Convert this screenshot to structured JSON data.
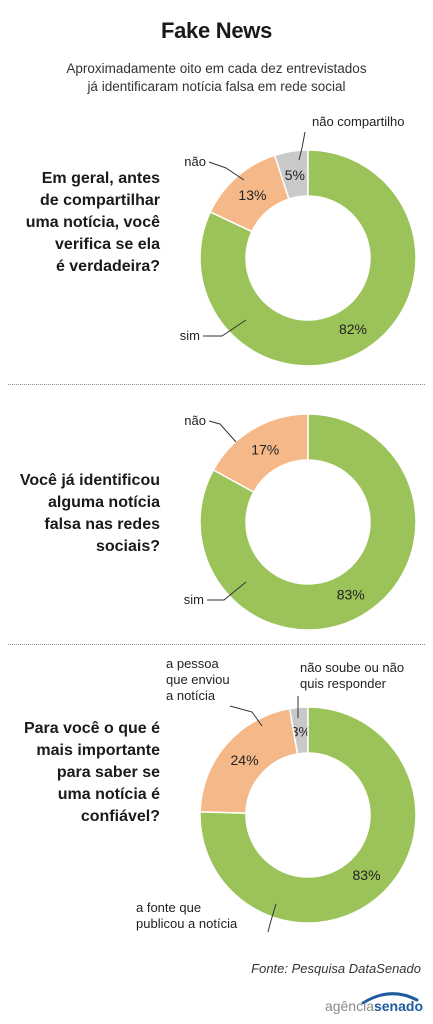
{
  "header": {
    "title": "Fake News",
    "subtitle": "Aproximadamente oito em cada dez entrevistados\njá identificaram notícia falsa em rede social"
  },
  "colors": {
    "sim": "#9bc35a",
    "nao": "#f5b889",
    "other": "#c9c9c9",
    "stroke": "#ffffff",
    "leader": "#333333"
  },
  "chart_data": [
    {
      "type": "pie",
      "question": "Em geral, antes\nde compartilhar\numa notícia, você\nverifica se ela\né verdadeira?",
      "slices": [
        {
          "label": "não compartilho",
          "value": 5,
          "color": "other"
        },
        {
          "label": "não",
          "value": 13,
          "color": "nao"
        },
        {
          "label": "sim",
          "value": 82,
          "color": "sim"
        }
      ]
    },
    {
      "type": "pie",
      "question": "Você já identificou\nalguma notícia\nfalsa nas redes\nsociais?",
      "slices": [
        {
          "label": "não",
          "value": 17,
          "color": "nao"
        },
        {
          "label": "sim",
          "value": 83,
          "color": "sim"
        }
      ]
    },
    {
      "type": "pie",
      "question": "Para você o que é\nmais importante\npara saber se\numa notícia é\nconfiável?",
      "slices": [
        {
          "label": "não soube ou não\nquis responder",
          "value": 3,
          "color": "other"
        },
        {
          "label": "a pessoa\nque enviou\na notícia",
          "value": 24,
          "color": "nao"
        },
        {
          "label": "a fonte que\npublicou a notícia",
          "value": 83,
          "color": "sim"
        }
      ]
    }
  ],
  "footer": {
    "source": "Fonte: Pesquisa DataSenado",
    "logo_part1": "agência",
    "logo_part2": "senado"
  }
}
